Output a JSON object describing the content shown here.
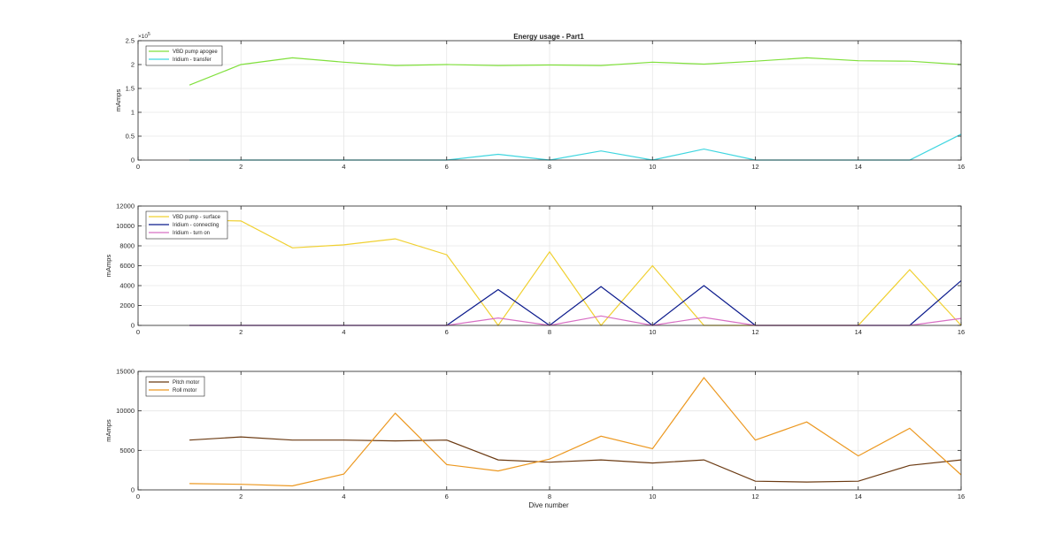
{
  "figure": {
    "title": "Energy usage - Part1",
    "xlabel": "Dive number"
  },
  "chart_data": [
    {
      "type": "line",
      "title": "Energy usage - Part1",
      "xlabel": "",
      "ylabel": "mAmps",
      "xlim": [
        0,
        16
      ],
      "ylim": [
        0,
        250000
      ],
      "xticks": [
        0,
        2,
        4,
        6,
        8,
        10,
        12,
        14,
        16
      ],
      "yticks": [
        0,
        50000,
        100000,
        150000,
        200000,
        250000
      ],
      "ytick_labels": [
        "0",
        "0.5",
        "1",
        "1.5",
        "2",
        "2.5"
      ],
      "exponent_label": "×10",
      "exponent_power": "5",
      "grid": true,
      "legend_location": "top-left",
      "x": [
        1,
        2,
        3,
        4,
        5,
        6,
        7,
        8,
        9,
        10,
        11,
        12,
        13,
        14,
        15,
        16
      ],
      "series": [
        {
          "name": "VBD pump apogee",
          "color": "#80e03c",
          "values": [
            157000,
            200000,
            214000,
            205000,
            198000,
            200000,
            198000,
            199000,
            198000,
            205000,
            201000,
            207000,
            214000,
            208000,
            207000,
            200000
          ]
        },
        {
          "name": "Iridium - transfer",
          "color": "#3fd6e0",
          "values": [
            0,
            0,
            0,
            0,
            0,
            0,
            12000,
            0,
            19000,
            0,
            23000,
            0,
            0,
            0,
            0,
            54000
          ]
        }
      ]
    },
    {
      "type": "line",
      "title": "",
      "xlabel": "",
      "ylabel": "mAmps",
      "xlim": [
        0,
        16
      ],
      "ylim": [
        0,
        12000
      ],
      "xticks": [
        0,
        2,
        4,
        6,
        8,
        10,
        12,
        14,
        16
      ],
      "yticks": [
        0,
        2000,
        4000,
        6000,
        8000,
        10000,
        12000
      ],
      "ytick_labels": [
        "0",
        "2000",
        "4000",
        "6000",
        "8000",
        "10000",
        "12000"
      ],
      "grid": true,
      "legend_location": "top-left",
      "x": [
        1,
        2,
        3,
        4,
        5,
        6,
        7,
        8,
        9,
        10,
        11,
        12,
        13,
        14,
        15,
        16
      ],
      "series": [
        {
          "name": "VBD pump - surface",
          "color": "#f0d030",
          "values": [
            10600,
            10500,
            7800,
            8100,
            8700,
            7100,
            0,
            7400,
            0,
            6000,
            0,
            0,
            0,
            0,
            5600,
            0
          ]
        },
        {
          "name": "Iridium - connecting",
          "color": "#0b1a8c",
          "values": [
            0,
            0,
            0,
            0,
            0,
            0,
            3600,
            0,
            3900,
            0,
            4000,
            0,
            0,
            0,
            0,
            4500
          ]
        },
        {
          "name": "Iridium - turn on",
          "color": "#d86fc4",
          "values": [
            0,
            0,
            0,
            0,
            0,
            0,
            750,
            0,
            950,
            0,
            800,
            0,
            0,
            0,
            0,
            700
          ]
        }
      ]
    },
    {
      "type": "line",
      "title": "",
      "xlabel": "Dive number",
      "ylabel": "mAmps",
      "xlim": [
        0,
        16
      ],
      "ylim": [
        0,
        15000
      ],
      "xticks": [
        0,
        2,
        4,
        6,
        8,
        10,
        12,
        14,
        16
      ],
      "yticks": [
        0,
        5000,
        10000,
        15000
      ],
      "ytick_labels": [
        "0",
        "5000",
        "10000",
        "15000"
      ],
      "grid": true,
      "legend_location": "top-left",
      "x": [
        1,
        2,
        3,
        4,
        5,
        6,
        7,
        8,
        9,
        10,
        11,
        12,
        13,
        14,
        15,
        16
      ],
      "series": [
        {
          "name": "Pitch motor",
          "color": "#6b3a12",
          "values": [
            6300,
            6700,
            6300,
            6300,
            6200,
            6300,
            3800,
            3500,
            3800,
            3400,
            3800,
            1100,
            1000,
            1100,
            3100,
            3800
          ]
        },
        {
          "name": "Roll motor",
          "color": "#ec9820",
          "values": [
            800,
            700,
            500,
            2000,
            9700,
            3200,
            2400,
            3900,
            6800,
            5200,
            14200,
            6300,
            8600,
            4300,
            7800,
            1900
          ]
        }
      ]
    }
  ]
}
